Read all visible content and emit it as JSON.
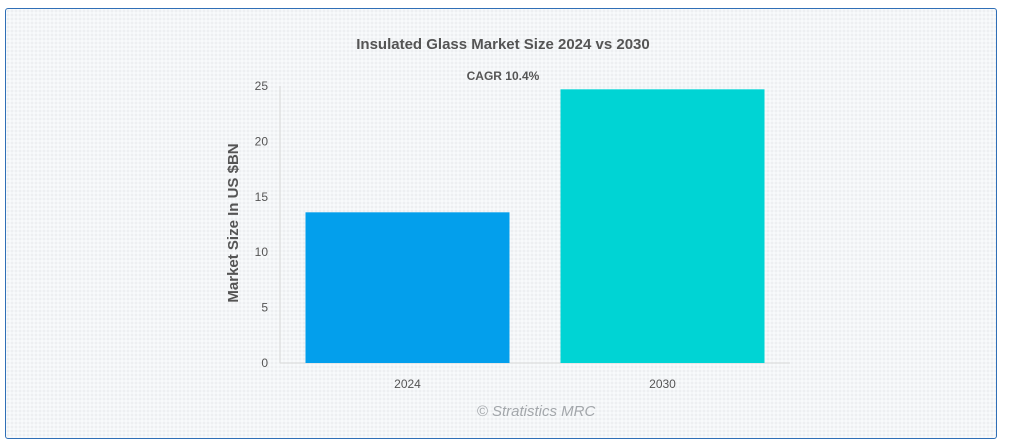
{
  "chart_data": {
    "type": "bar",
    "title": "Insulated Glass Market Size 2024 vs 2030",
    "annotation": "CAGR 10.4%",
    "categories": [
      "2024",
      "2030"
    ],
    "values": [
      13.6,
      24.7
    ],
    "colors": [
      "#039fec",
      "#00d4d4"
    ],
    "xlabel": "",
    "ylabel": "Market Size In US $BN",
    "ylim": [
      0,
      25
    ],
    "yticks": [
      0,
      5,
      10,
      15,
      20,
      25
    ],
    "grid": false,
    "legend": "none"
  },
  "watermark": "© Stratistics MRC"
}
